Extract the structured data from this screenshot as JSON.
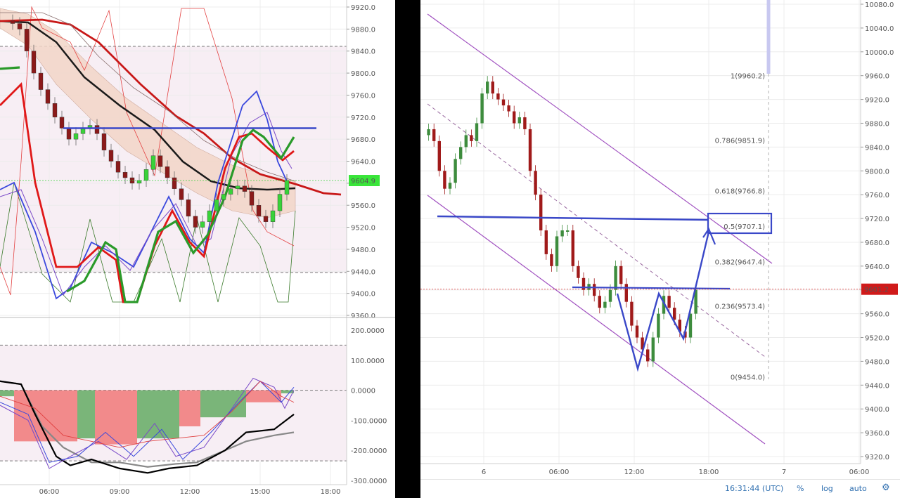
{
  "left_chart": {
    "price_ticks": [
      "9920.0",
      "9880.0",
      "9840.0",
      "9800.0",
      "9760.0",
      "9720.0",
      "9680.0",
      "9640.0",
      "9600.0",
      "9560.0",
      "9520.0",
      "9480.0",
      "9440.0",
      "9400.0",
      "9360.0"
    ],
    "current_price": "9604.9",
    "osc_ticks": [
      "200.0000",
      "100.0000",
      "0.0000",
      "-100.0000",
      "-200.0000",
      "-300.0000"
    ],
    "time_ticks": [
      "06:00",
      "09:00",
      "12:00",
      "15:00",
      "18:00"
    ]
  },
  "right_chart": {
    "price_ticks": [
      "10080.0",
      "10040.0",
      "10000.0",
      "9960.0",
      "9920.0",
      "9880.0",
      "9840.0",
      "9800.0",
      "9760.0",
      "9720.0",
      "9680.0",
      "9640.0",
      "9600.0",
      "9560.0",
      "9520.0",
      "9480.0",
      "9440.0",
      "9400.0",
      "9360.0",
      "9320.0"
    ],
    "current_price": "9601.2",
    "time_ticks": [
      "6",
      "06:00",
      "12:00",
      "18:00",
      "7",
      "06:00"
    ],
    "fib_levels": [
      {
        "label": "1(9960.2)",
        "color": "#777777"
      },
      {
        "label": "0.786(9851.9)",
        "color": "#3aa7c9"
      },
      {
        "label": "0.618(9766.8)",
        "color": "#3cb371"
      },
      {
        "label": "0.5(9707.1)",
        "color": "#3cb371"
      },
      {
        "label": "0.382(9647.4)",
        "color": "#9acd32"
      },
      {
        "label": "0.236(9573.4)",
        "color": "#e06060"
      },
      {
        "label": "0(9454.0)",
        "color": "#777777"
      }
    ],
    "status": {
      "time": "16:31:44 (UTC)",
      "percent": "%",
      "log": "log",
      "auto": "auto"
    }
  },
  "chart_data": [
    {
      "type": "line",
      "ylim": [
        9360,
        9920
      ],
      "x_ticks": [
        "06:00",
        "09:00",
        "12:00",
        "15:00",
        "18:00"
      ],
      "last_price": 9604.9,
      "resistance_level": 9700,
      "candles_approx": [
        9895,
        9890,
        9880,
        9840,
        9800,
        9770,
        9745,
        9720,
        9700,
        9680,
        9690,
        9700,
        9705,
        9690,
        9660,
        9640,
        9620,
        9610,
        9600,
        9605,
        9625,
        9650,
        9630,
        9610,
        9590,
        9570,
        9540,
        9520,
        9530,
        9550,
        9570,
        9580,
        9590,
        9595,
        9585,
        9560,
        9540,
        9530,
        9550,
        9580,
        9605
      ]
    },
    {
      "type": "area",
      "ylim": [
        -300,
        200
      ],
      "series": [
        {
          "values": [
            30,
            0,
            -40,
            -100,
            -150,
            -170,
            -180,
            -160,
            -120,
            -80,
            -90,
            -110,
            -70,
            -40,
            -20,
            0,
            20,
            30
          ]
        }
      ]
    },
    {
      "type": "line",
      "ylim": [
        9320,
        10080
      ],
      "x_ticks": [
        "6",
        "06:00",
        "12:00",
        "18:00",
        "7",
        "06:00"
      ],
      "last_price": 9601.2,
      "fibonacci": [
        9960.2,
        9851.9,
        9766.8,
        9707.1,
        9647.4,
        9573.4,
        9454.0
      ],
      "horizontal_levels": [
        9720,
        9605
      ],
      "candles_approx": [
        9860,
        9870,
        9850,
        9800,
        9770,
        9780,
        9820,
        9840,
        9860,
        9850,
        9880,
        9930,
        9950,
        9930,
        9920,
        9910,
        9900,
        9880,
        9890,
        9870,
        9800,
        9760,
        9700,
        9660,
        9640,
        9690,
        9700,
        9700,
        9640,
        9620,
        9600,
        9610,
        9590,
        9570,
        9580,
        9600,
        9640,
        9610,
        9580,
        9540,
        9520,
        9500,
        9480,
        9520,
        9560,
        9590,
        9570,
        9550,
        9530,
        9520,
        9560,
        9600
      ]
    }
  ]
}
